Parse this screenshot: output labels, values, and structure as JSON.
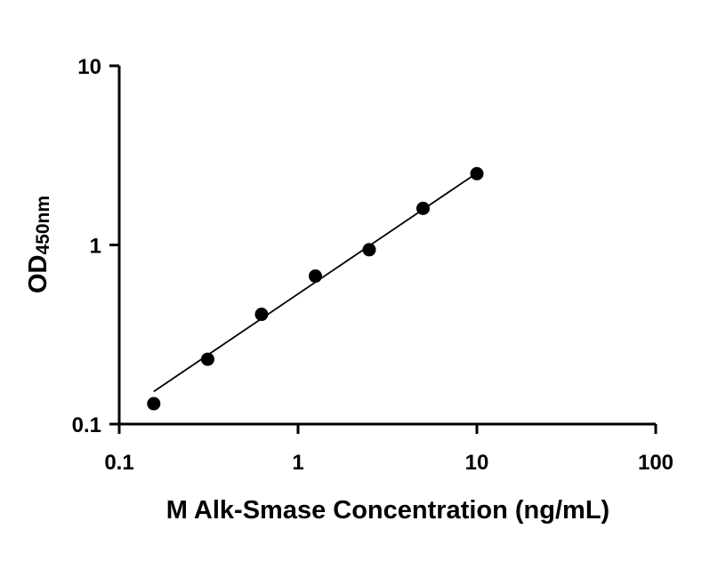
{
  "chart_data": {
    "type": "scatter",
    "title": "",
    "xlabel": "M Alk-Smase Concentration (ng/mL)",
    "ylabel": {
      "main": "OD",
      "sub": "450nm"
    },
    "xscale": "log",
    "yscale": "log",
    "xlim": [
      0.1,
      100
    ],
    "ylim": [
      0.1,
      10
    ],
    "x_ticks": [
      {
        "value": 0.1,
        "label": "0.1"
      },
      {
        "value": 1,
        "label": "1"
      },
      {
        "value": 10,
        "label": "10"
      },
      {
        "value": 100,
        "label": "100"
      }
    ],
    "y_ticks": [
      {
        "value": 0.1,
        "label": "0.1"
      },
      {
        "value": 1,
        "label": "1"
      },
      {
        "value": 10,
        "label": "10"
      }
    ],
    "grid": false,
    "legend": "none",
    "series": [
      {
        "x": [
          0.156,
          0.3125,
          0.625,
          1.25,
          2.5,
          5,
          10
        ],
        "y": [
          0.13,
          0.23,
          0.41,
          0.67,
          0.94,
          1.6,
          2.5
        ]
      }
    ],
    "fit_line": {
      "x": [
        0.156,
        10
      ],
      "y": [
        0.152,
        2.52
      ]
    },
    "colors": {
      "points": "#000000",
      "line": "#000000",
      "axes": "#000000"
    }
  }
}
